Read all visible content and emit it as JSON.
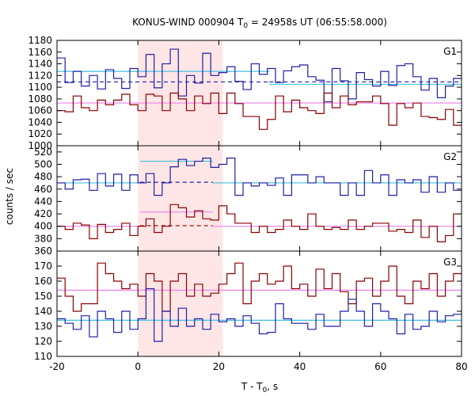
{
  "chart_data": {
    "type": "line",
    "title_main": "KONUS-WIND 000904 T",
    "title_sub": "0",
    "title_rest": " = 24958s UT (06:55:58.000)",
    "xlabel_main": "T - T",
    "xlabel_sub": "0",
    "xlabel_rest": ", s",
    "ylabel": "counts / sec",
    "xlim": [
      -20,
      80
    ],
    "xticks": [
      "-20",
      "0",
      "20",
      "40",
      "60",
      "80"
    ],
    "highlight_region": [
      0,
      21
    ],
    "colors": {
      "g1": "#8b0000",
      "g2": "#1f1fa8",
      "background_fit": "#ee82ee",
      "source_fit": "#40c0e0",
      "highlight": "#ffe6e6"
    },
    "panels": [
      {
        "name": "G1",
        "ylim": [
          1000,
          1180
        ],
        "yticks": [
          "1000",
          "1020",
          "1040",
          "1060",
          "1080",
          "1100",
          "1120",
          "1140",
          "1160",
          "1180"
        ],
        "series": [
          {
            "color_key": "g2",
            "x_start": -20,
            "bin": 2,
            "values": [
              1150,
              1108,
              1127,
              1102,
              1120,
              1097,
              1130,
              1115,
              1098,
              1132,
              1118,
              1156,
              1099,
              1140,
              1165,
              1085,
              1120,
              1107,
              1158,
              1120,
              1125,
              1135,
              1110,
              1096,
              1140,
              1122,
              1132,
              1108,
              1128,
              1135,
              1138,
              1118,
              1112,
              1075,
              1132,
              1111,
              1080,
              1125,
              1113,
              1102,
              1127,
              1103,
              1137,
              1140,
              1118,
              1095,
              1115,
              1082,
              1102,
              1115
            ]
          },
          {
            "color_key": "g1",
            "x_start": -20,
            "bin": 2,
            "values": [
              1060,
              1058,
              1085,
              1065,
              1060,
              1078,
              1070,
              1078,
              1088,
              1070,
              1060,
              1088,
              1085,
              1060,
              1090,
              1080,
              1060,
              1085,
              1072,
              1090,
              1055,
              1090,
              1072,
              1050,
              1050,
              1028,
              1045,
              1085,
              1058,
              1078,
              1065,
              1060,
              1055,
              1090,
              1065,
              1085,
              1070,
              1075,
              1075,
              1085,
              1072,
              1035,
              1072,
              1065,
              1073,
              1050,
              1048,
              1045,
              1062,
              1035
            ]
          }
        ],
        "fits": [
          {
            "color_key": "source_fit",
            "segments": [
              [
                -20,
                32.5,
                1127
              ],
              [
                32.5,
                80,
                1105
              ]
            ]
          },
          {
            "color_key": "background_fit",
            "segments": [
              [
                -20,
                80,
                1073
              ]
            ]
          },
          {
            "color_key": "g2",
            "dashed": true,
            "segments": [
              [
                -20,
                32.5,
                1109
              ],
              [
                32.5,
                80,
                1109
              ]
            ]
          }
        ]
      },
      {
        "name": "G2",
        "ylim": [
          360,
          530
        ],
        "yticks": [
          "360",
          "380",
          "400",
          "420",
          "440",
          "460",
          "480",
          "500",
          "520"
        ],
        "series": [
          {
            "color_key": "g2",
            "x_start": -20,
            "bin": 2,
            "values": [
              470,
              460,
              475,
              476,
              458,
              485,
              465,
              484,
              458,
              483,
              470,
              485,
              450,
              470,
              496,
              508,
              498,
              505,
              510,
              495,
              500,
              510,
              450,
              470,
              465,
              470,
              466,
              478,
              450,
              483,
              483,
              470,
              480,
              470,
              470,
              450,
              470,
              450,
              490,
              470,
              483,
              450,
              475,
              470,
              475,
              455,
              480,
              455,
              470,
              458
            ]
          },
          {
            "color_key": "g1",
            "x_start": -20,
            "bin": 2,
            "values": [
              400,
              395,
              405,
              402,
              380,
              403,
              390,
              395,
              405,
              385,
              400,
              412,
              390,
              400,
              435,
              430,
              415,
              425,
              412,
              410,
              433,
              420,
              405,
              405,
              390,
              400,
              390,
              395,
              410,
              400,
              395,
              420,
              400,
              395,
              398,
              395,
              410,
              395,
              400,
              405,
              405,
              392,
              395,
              390,
              410,
              382,
              400,
              375,
              385,
              420
            ]
          }
        ],
        "fits": [
          {
            "color_key": "source_fit",
            "segments": [
              [
                -20,
                0.5,
                470
              ],
              [
                0.5,
                18.5,
                505
              ],
              [
                18.5,
                80,
                470
              ]
            ]
          },
          {
            "color_key": "background_fit",
            "segments": [
              [
                -20,
                0.5,
                400
              ],
              [
                0.5,
                18.5,
                423
              ],
              [
                18.5,
                80,
                400
              ]
            ]
          },
          {
            "color_key": "g2",
            "dashed": true,
            "segments": [
              [
                0.5,
                18.5,
                471
              ]
            ]
          },
          {
            "color_key": "g1",
            "dashed": true,
            "segments": [
              [
                0.5,
                18.5,
                401
              ]
            ]
          }
        ]
      },
      {
        "name": "G3",
        "ylim": [
          110,
          180
        ],
        "yticks": [
          "110",
          "120",
          "130",
          "140",
          "150",
          "160",
          "170"
        ],
        "series": [
          {
            "color_key": "g1",
            "x_start": -20,
            "bin": 2,
            "values": [
              162,
              150,
              140,
              145,
              145,
              172,
              165,
              160,
              155,
              158,
              150,
              165,
              160,
              140,
              160,
              165,
              150,
              158,
              150,
              152,
              158,
              165,
              172,
              145,
              160,
              165,
              158,
              160,
              170,
              155,
              158,
              150,
              168,
              155,
              165,
              153,
              145,
              160,
              162,
              150,
              160,
              170,
              150,
              145,
              160,
              155,
              165,
              150,
              160,
              165
            ]
          },
          {
            "color_key": "g2",
            "x_start": -20,
            "bin": 2,
            "values": [
              135,
              132,
              128,
              137,
              123,
              140,
              135,
              126,
              140,
              128,
              135,
              155,
              120,
              140,
              130,
              142,
              130,
              135,
              128,
              138,
              133,
              135,
              130,
              137,
              132,
              125,
              126,
              145,
              135,
              132,
              132,
              128,
              138,
              130,
              130,
              140,
              148,
              140,
              130,
              145,
              140,
              135,
              125,
              138,
              128,
              130,
              140,
              133,
              137,
              138
            ]
          }
        ],
        "fits": [
          {
            "color_key": "background_fit",
            "segments": [
              [
                -20,
                80,
                154
              ]
            ]
          },
          {
            "color_key": "source_fit",
            "segments": [
              [
                -20,
                80,
                134
              ]
            ]
          }
        ]
      }
    ]
  }
}
